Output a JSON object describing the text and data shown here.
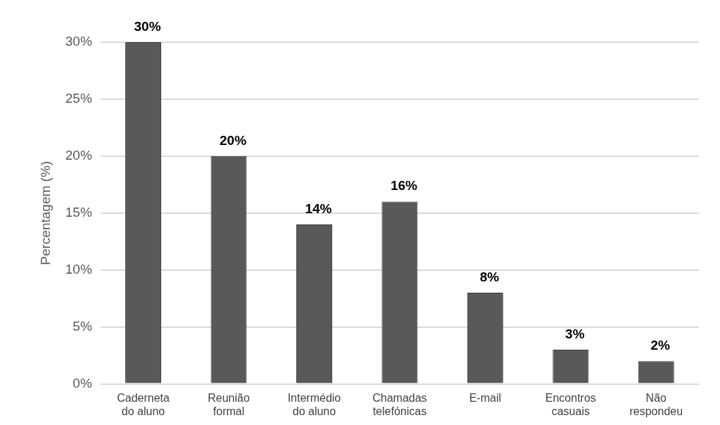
{
  "chart_data": {
    "type": "bar",
    "ylabel": "Percentagem (%)",
    "categories": [
      "Caderneta do aluno",
      "Reunião formal",
      "Intermédio do aluno",
      "Chamadas telefónicas",
      "E-mail",
      "Encontros casuais",
      "Não respondeu"
    ],
    "values": [
      30,
      20,
      14,
      16,
      8,
      3,
      2
    ],
    "value_labels": [
      "30%",
      "20%",
      "14%",
      "16%",
      "8%",
      "3%",
      "2%"
    ],
    "color": "#595959",
    "ylim": [
      0,
      30
    ],
    "yticks": [
      {
        "value": 0,
        "label": "0%"
      },
      {
        "value": 5,
        "label": "5%"
      },
      {
        "value": 10,
        "label": "10%"
      },
      {
        "value": 15,
        "label": "15%"
      },
      {
        "value": 20,
        "label": "20%"
      },
      {
        "value": 25,
        "label": "25%"
      },
      {
        "value": 30,
        "label": "30%"
      }
    ],
    "grid": "y",
    "legend": false
  }
}
